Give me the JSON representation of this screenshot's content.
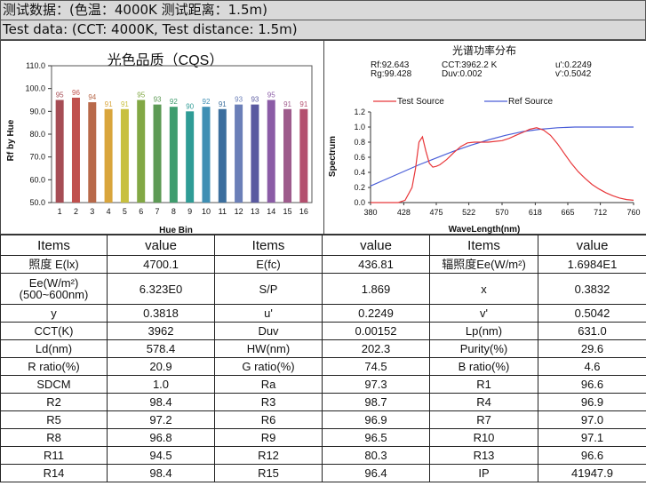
{
  "header": {
    "line1": "测试数据：(色温：4000K 测试距离：1.5m)",
    "line2": "Test data: (CCT: 4000K, Test distance: 1.5m)"
  },
  "chart_data": [
    {
      "type": "bar",
      "title": "光色品质（CQS）",
      "xlabel": "Hue Bin",
      "ylabel": "Rf by Hue",
      "ylim": [
        50,
        110
      ],
      "yticks": [
        "50.0",
        "60.0",
        "70.0",
        "80.0",
        "90.0",
        "100.0",
        "110.0"
      ],
      "grid": false,
      "categories": [
        "1",
        "2",
        "3",
        "4",
        "5",
        "6",
        "7",
        "8",
        "9",
        "10",
        "11",
        "12",
        "13",
        "14",
        "15",
        "16"
      ],
      "values": [
        95,
        96,
        94,
        91,
        91,
        95,
        93,
        92,
        90,
        92,
        91,
        93,
        93,
        95,
        91,
        91
      ],
      "colors": [
        "#a64d55",
        "#c0504d",
        "#b8694a",
        "#d9a53c",
        "#c8c040",
        "#82a845",
        "#5d9a55",
        "#3f9c6e",
        "#2f9c96",
        "#3f8fb4",
        "#3c6f9e",
        "#6b7fb8",
        "#5a5aa0",
        "#8b5ca6",
        "#9e5b8c",
        "#b34f6e"
      ]
    },
    {
      "type": "line",
      "title": "光谱功率分布",
      "xlabel": "WaveLength(nm)",
      "ylabel": "Spectrum",
      "xlim": [
        380,
        760
      ],
      "ylim": [
        0,
        1.2
      ],
      "xticks": [
        "380",
        "428",
        "475",
        "522",
        "570",
        "618",
        "665",
        "712",
        "760"
      ],
      "yticks": [
        "0.0",
        "0.2",
        "0.4",
        "0.6",
        "0.8",
        "1.0",
        "1.2"
      ],
      "metrics": [
        "Rf:92.643",
        "CCT:3962.2 K",
        "u':0.2249",
        "Rg:99.428",
        "Duv:0.002",
        "v':0.5042"
      ],
      "series": [
        {
          "name": "Test Source",
          "color": "#e8373a",
          "x": [
            380,
            420,
            430,
            440,
            445,
            450,
            455,
            460,
            465,
            470,
            475,
            480,
            490,
            500,
            510,
            520,
            530,
            540,
            550,
            560,
            570,
            580,
            590,
            600,
            610,
            620,
            630,
            640,
            650,
            660,
            670,
            680,
            690,
            700,
            710,
            720,
            730,
            740,
            750,
            760
          ],
          "y": [
            0,
            0,
            0.03,
            0.2,
            0.45,
            0.8,
            0.87,
            0.68,
            0.52,
            0.47,
            0.48,
            0.5,
            0.57,
            0.66,
            0.74,
            0.79,
            0.8,
            0.8,
            0.8,
            0.81,
            0.82,
            0.85,
            0.89,
            0.93,
            0.97,
            0.99,
            0.96,
            0.89,
            0.78,
            0.65,
            0.52,
            0.41,
            0.32,
            0.24,
            0.18,
            0.13,
            0.09,
            0.06,
            0.04,
            0.03
          ]
        },
        {
          "name": "Ref Source",
          "color": "#4a5ed8",
          "x": [
            380,
            400,
            425,
            450,
            475,
            500,
            525,
            550,
            575,
            600,
            625,
            650,
            675,
            700,
            725,
            750,
            760
          ],
          "y": [
            0.22,
            0.3,
            0.4,
            0.5,
            0.59,
            0.68,
            0.76,
            0.83,
            0.89,
            0.94,
            0.97,
            0.99,
            1.0,
            1.0,
            1.0,
            1.0,
            1.0
          ]
        }
      ]
    }
  ],
  "table": {
    "header": [
      "Items",
      "value",
      "Items",
      "value",
      "Items",
      "value"
    ],
    "rows": [
      [
        "照度 E(lx)",
        "4700.1",
        "E(fc)",
        "436.81",
        "辐照度Ee(W/m²)",
        "1.6984E1"
      ],
      [
        "Ee(W/m²)(500~600nm)",
        "6.323E0",
        "S/P",
        "1.869",
        "x",
        "0.3832"
      ],
      [
        "y",
        "0.3818",
        "u'",
        "0.2249",
        "v'",
        "0.5042"
      ],
      [
        "CCT(K)",
        "3962",
        "Duv",
        "0.00152",
        "Lp(nm)",
        "631.0"
      ],
      [
        "Ld(nm)",
        "578.4",
        "HW(nm)",
        "202.3",
        "Purity(%)",
        "29.6"
      ],
      [
        "R ratio(%)",
        "20.9",
        "G ratio(%)",
        "74.5",
        "B ratio(%)",
        "4.6"
      ],
      [
        "SDCM",
        "1.0",
        "Ra",
        "97.3",
        "R1",
        "96.6"
      ],
      [
        "R2",
        "98.4",
        "R3",
        "98.7",
        "R4",
        "96.9"
      ],
      [
        "R5",
        "97.2",
        "R6",
        "96.9",
        "R7",
        "97.0"
      ],
      [
        "R8",
        "96.8",
        "R9",
        "96.5",
        "R10",
        "97.1"
      ],
      [
        "R11",
        "94.5",
        "R12",
        "80.3",
        "R13",
        "96.6"
      ],
      [
        "R14",
        "98.4",
        "R15",
        "96.4",
        "IP",
        "41947.9"
      ]
    ]
  }
}
